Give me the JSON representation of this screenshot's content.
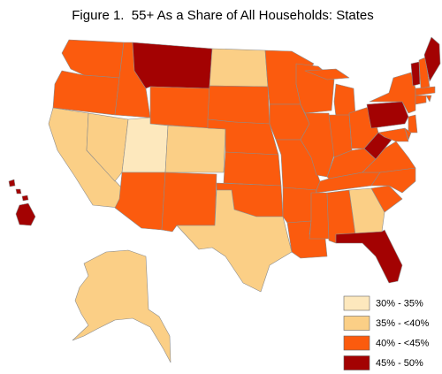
{
  "title": "Figure 1.  55+ As a Share of All Households: States",
  "legend": [
    {
      "label": "30% - 35%",
      "color": "#fde8bd"
    },
    {
      "label": "35% - <40%",
      "color": "#fbcf86"
    },
    {
      "label": "40% - <45%",
      "color": "#fb5b0e"
    },
    {
      "label": "45% - 50%",
      "color": "#a30202"
    }
  ]
}
